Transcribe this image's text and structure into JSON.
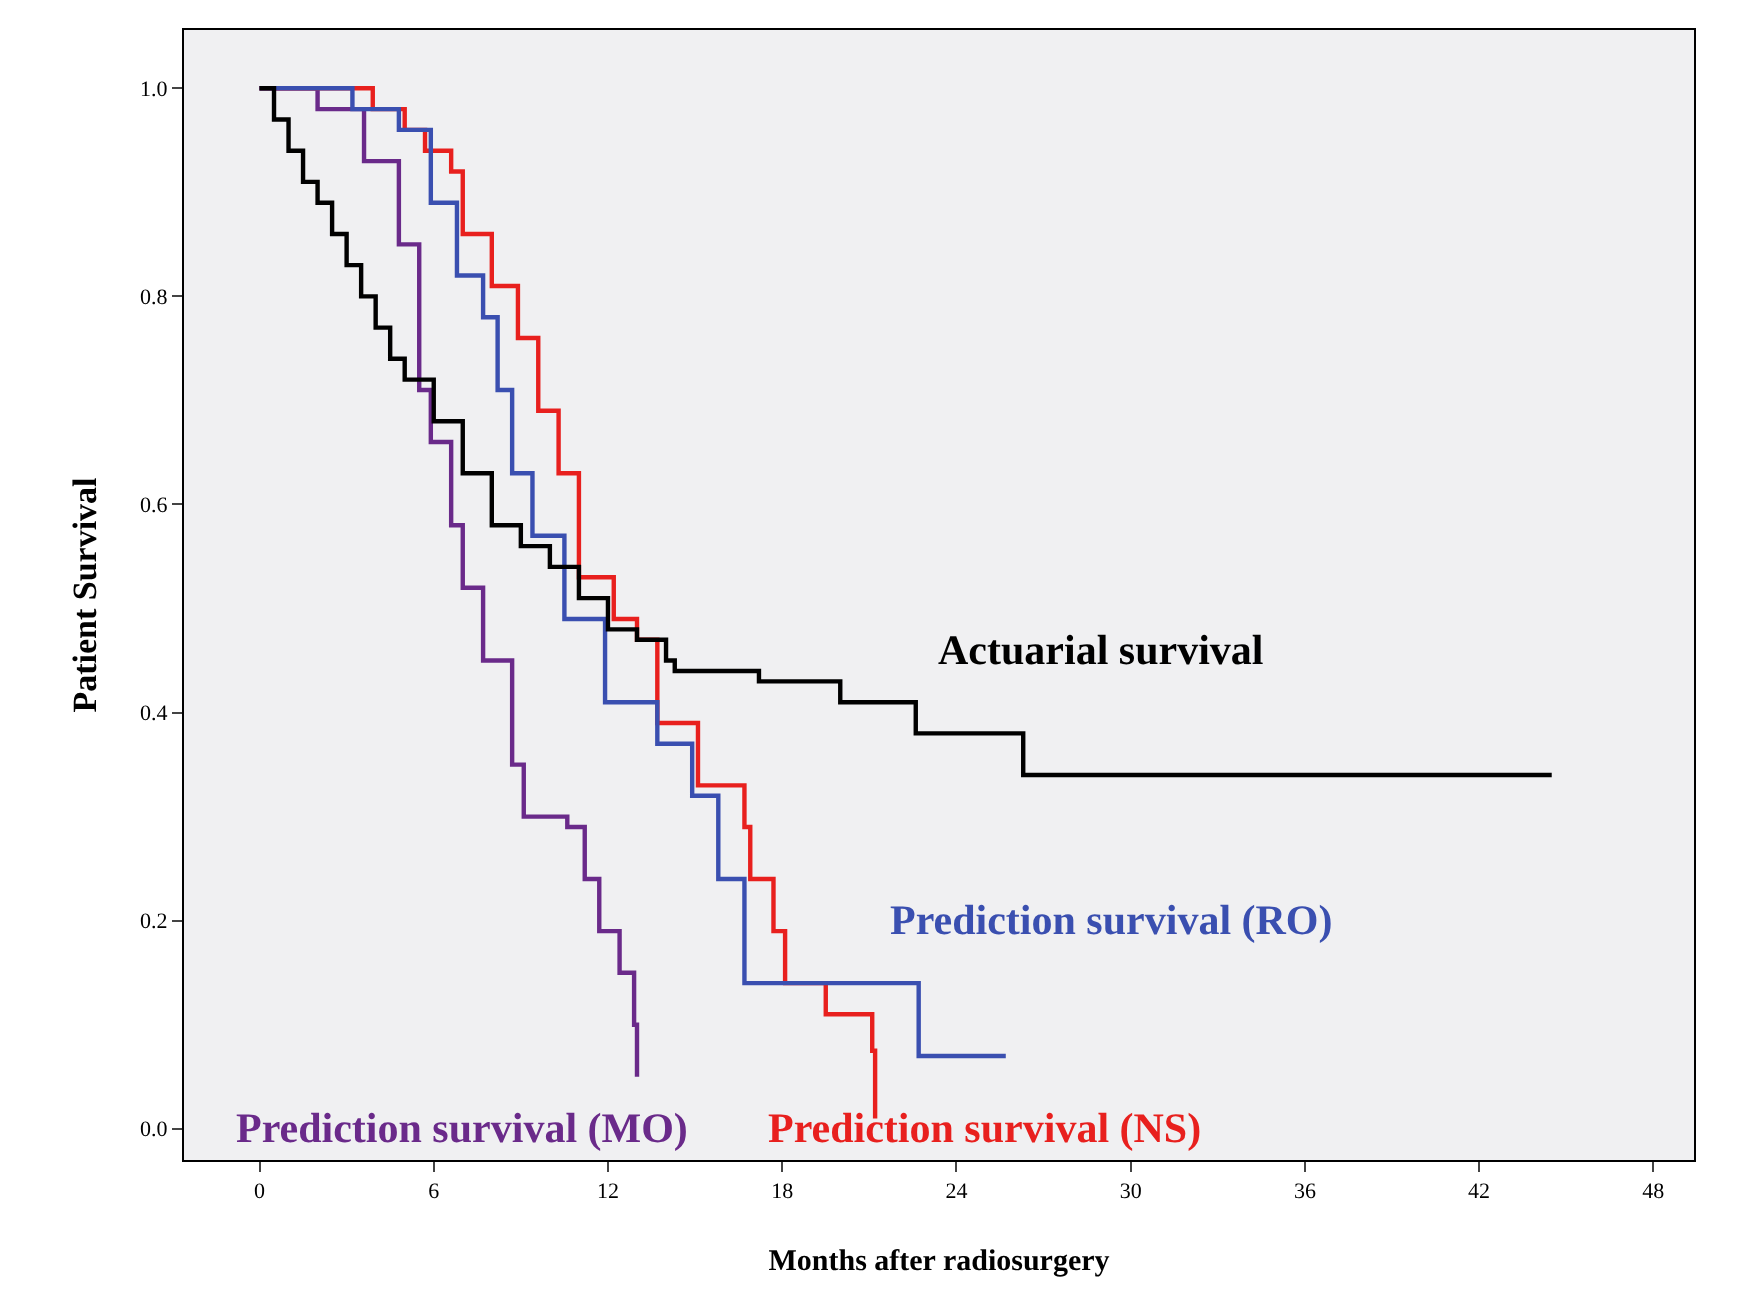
{
  "chart_data": {
    "type": "step",
    "xlabel": "Months after radiosurgery",
    "ylabel": "Patient Survival",
    "xlim": [
      -2.6,
      49.4
    ],
    "xticks": [
      0,
      6,
      12,
      18,
      24,
      30,
      36,
      42,
      48
    ],
    "ylim": [
      -0.03,
      1.056
    ],
    "yticks": [
      {
        "value": 0,
        "label": "0.0"
      },
      {
        "value": 0.2,
        "label": "0.2"
      },
      {
        "value": 0.4,
        "label": "0.4"
      },
      {
        "value": 0.6,
        "label": "0.6"
      },
      {
        "value": 0.8,
        "label": "0.8"
      },
      {
        "value": 1,
        "label": "1.0"
      }
    ],
    "grid": false,
    "legend": false,
    "line_style": "solid",
    "series": [
      {
        "name": "Actuarial survival",
        "color": "#000000",
        "x": [
          0,
          0.5,
          1,
          1.5,
          2,
          2.5,
          3,
          3.5,
          4,
          4.5,
          5,
          6,
          7,
          8,
          9,
          10,
          11,
          12,
          13,
          14,
          14.3,
          17.2,
          20,
          22.6,
          26.3,
          44.5
        ],
        "values": [
          1.0,
          0.97,
          0.94,
          0.91,
          0.89,
          0.86,
          0.83,
          0.8,
          0.77,
          0.74,
          0.72,
          0.68,
          0.63,
          0.58,
          0.56,
          0.54,
          0.51,
          0.48,
          0.47,
          0.45,
          0.44,
          0.43,
          0.41,
          0.38,
          0.34,
          0.34
        ]
      },
      {
        "name": "Prediction survival (RO)",
        "color": "#3a4fb0",
        "x": [
          0,
          3.2,
          4.8,
          5.9,
          6.8,
          7.7,
          8.2,
          8.7,
          9.4,
          10.5,
          11.9,
          13.7,
          14.9,
          15.8,
          16.7,
          22.7,
          25.7
        ],
        "values": [
          1.0,
          0.98,
          0.96,
          0.89,
          0.82,
          0.78,
          0.71,
          0.63,
          0.57,
          0.49,
          0.41,
          0.37,
          0.32,
          0.24,
          0.14,
          0.07,
          0.07
        ]
      },
      {
        "name": "Prediction survival (NS)",
        "color": "#e8201e",
        "x": [
          0,
          3.9,
          5.0,
          5.7,
          6.6,
          7.0,
          8.0,
          8.9,
          9.6,
          10.3,
          11.0,
          12.2,
          13.0,
          13.7,
          15.1,
          16.7,
          16.9,
          17.7,
          18.1,
          19.5,
          21.1,
          21.2
        ],
        "values": [
          1.0,
          0.98,
          0.96,
          0.94,
          0.92,
          0.86,
          0.81,
          0.76,
          0.69,
          0.63,
          0.53,
          0.49,
          0.47,
          0.39,
          0.33,
          0.29,
          0.24,
          0.19,
          0.14,
          0.11,
          0.075,
          0.01
        ]
      },
      {
        "name": "Prediction survival (MO)",
        "color": "#6a2a8a",
        "x": [
          0,
          2,
          3.6,
          4.8,
          5.5,
          5.9,
          6.6,
          7.0,
          7.7,
          8.7,
          9.1,
          10.6,
          11.2,
          11.7,
          12.4,
          12.9,
          13.0
        ],
        "values": [
          1.0,
          0.98,
          0.93,
          0.85,
          0.71,
          0.66,
          0.58,
          0.52,
          0.45,
          0.35,
          0.3,
          0.29,
          0.24,
          0.19,
          0.15,
          0.1,
          0.05
        ]
      }
    ]
  }
}
